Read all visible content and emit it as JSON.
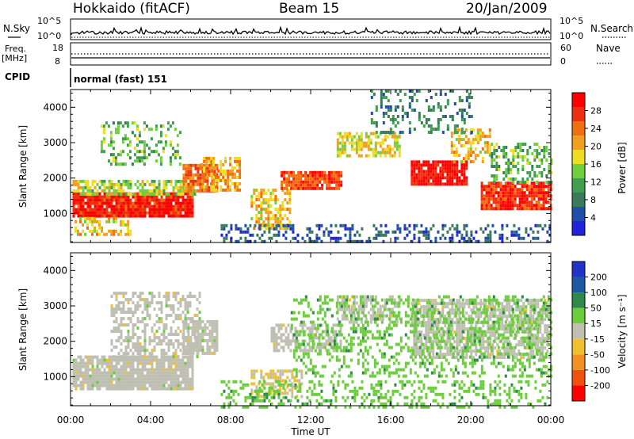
{
  "header": {
    "station": "Hokkaido (fitACF)",
    "beam": "Beam 15",
    "date": "20/Jan/2009"
  },
  "summary_panels": {
    "nsky_label": "N.Sky",
    "nsky_ticks": [
      "10^5",
      "10^0"
    ],
    "nsearch_label": "N.Search",
    "nsearch_ticks": [
      "10^5",
      "10^0"
    ],
    "freq_label": "Freq.",
    "freq_unit": "[MHz]",
    "freq_ticks": [
      "18",
      "8"
    ],
    "nave_label": "Nave",
    "nave_ticks": [
      "60",
      "0"
    ],
    "cpid_label": "CPID",
    "cpid_value": "normal (fast) 151"
  },
  "colors": {
    "power_scale": [
      "#2222dd",
      "#1f4fa8",
      "#3a7a5a",
      "#3f9f4f",
      "#6fcf3f",
      "#eedd22",
      "#f0a020",
      "#f07010",
      "#ee3010",
      "#ff0000"
    ],
    "velocity_scale": [
      "#2232c8",
      "#1e58a0",
      "#2e8a4a",
      "#6ccd3c",
      "#c0c0b0",
      "#f0c030",
      "#f09020",
      "#f05010",
      "#ff0000"
    ],
    "velocity_ground": "#bebeb4"
  },
  "chart_data": [
    {
      "type": "heatmap",
      "name": "power",
      "ylabel": "Slant Range [km]",
      "xlabel": "",
      "yticks": [
        "1000",
        "2000",
        "3000",
        "4000"
      ],
      "ylim": [
        180,
        4500
      ],
      "xlim_hours": [
        0,
        24
      ],
      "colorbar_label": "Power [dB]",
      "colorbar_ticks": [
        "4",
        "8",
        "12",
        "16",
        "20",
        "24",
        "28"
      ],
      "color_range": [
        0,
        30
      ],
      "regions": [
        {
          "t": [
            0.1,
            6.1
          ],
          "r": [
            900,
            1600
          ],
          "v": 27,
          "density": 0.95
        },
        {
          "t": [
            0.1,
            6.2
          ],
          "r": [
            1550,
            1950
          ],
          "v": 15,
          "density": 0.7
        },
        {
          "t": [
            0.2,
            3.0
          ],
          "r": [
            400,
            900
          ],
          "v": 18,
          "density": 0.5
        },
        {
          "t": [
            5.6,
            7.3
          ],
          "r": [
            1600,
            2400
          ],
          "v": 23,
          "density": 0.85
        },
        {
          "t": [
            1.5,
            5.5
          ],
          "r": [
            2400,
            3600
          ],
          "v": 12,
          "density": 0.3
        },
        {
          "t": [
            6.5,
            8.5
          ],
          "r": [
            1700,
            2600
          ],
          "v": 20,
          "density": 0.6
        },
        {
          "t": [
            9.0,
            11.0
          ],
          "r": [
            600,
            1700
          ],
          "v": 18,
          "density": 0.6
        },
        {
          "t": [
            10.5,
            13.5
          ],
          "r": [
            1700,
            2200
          ],
          "v": 25,
          "density": 0.85
        },
        {
          "t": [
            13.3,
            16.5
          ],
          "r": [
            2600,
            3300
          ],
          "v": 17,
          "density": 0.6
        },
        {
          "t": [
            17.0,
            19.8
          ],
          "r": [
            1800,
            2500
          ],
          "v": 28,
          "density": 0.9
        },
        {
          "t": [
            19.0,
            21.0
          ],
          "r": [
            2500,
            3400
          ],
          "v": 18,
          "density": 0.5
        },
        {
          "t": [
            20.5,
            24.0
          ],
          "r": [
            1100,
            1900
          ],
          "v": 26,
          "density": 0.9
        },
        {
          "t": [
            21.0,
            24.0
          ],
          "r": [
            1900,
            3000
          ],
          "v": 12,
          "density": 0.4
        },
        {
          "t": [
            7.5,
            24.0
          ],
          "r": [
            180,
            700
          ],
          "v": 5,
          "density": 0.35
        },
        {
          "t": [
            15.0,
            20.0
          ],
          "r": [
            3300,
            4500
          ],
          "v": 8,
          "density": 0.25
        }
      ]
    },
    {
      "type": "heatmap",
      "name": "velocity",
      "ylabel": "Slant Range [km]",
      "xlabel": "Time UT",
      "xticks": [
        "00:00",
        "04:00",
        "08:00",
        "12:00",
        "16:00",
        "20:00",
        "00:00"
      ],
      "yticks": [
        "1000",
        "2000",
        "3000",
        "4000"
      ],
      "ylim": [
        180,
        4500
      ],
      "xlim_hours": [
        0,
        24
      ],
      "colorbar_label": "Velocity [m s⁻¹]",
      "colorbar_ticks": [
        "200",
        "100",
        "50",
        "15",
        "-15",
        "-50",
        "-100",
        "-200"
      ],
      "color_range": [
        -250,
        250
      ],
      "regions": [
        {
          "t": [
            0.1,
            6.1
          ],
          "r": [
            700,
            1600
          ],
          "v": 0,
          "density": 0.9
        },
        {
          "t": [
            2.0,
            6.5
          ],
          "r": [
            1600,
            3400
          ],
          "v": 0,
          "density": 0.5
        },
        {
          "t": [
            5.6,
            7.3
          ],
          "r": [
            1700,
            2600
          ],
          "v": 0,
          "density": 0.8
        },
        {
          "t": [
            10.0,
            13.5
          ],
          "r": [
            1700,
            2500
          ],
          "v": 0,
          "density": 0.6
        },
        {
          "t": [
            13.3,
            16.5
          ],
          "r": [
            2500,
            3300
          ],
          "v": 0,
          "density": 0.6
        },
        {
          "t": [
            17.0,
            24.0
          ],
          "r": [
            1500,
            3200
          ],
          "v": 0,
          "density": 0.7
        },
        {
          "t": [
            9.0,
            11.5
          ],
          "r": [
            400,
            1200
          ],
          "v": -30,
          "density": 0.5
        },
        {
          "t": [
            7.5,
            24.0
          ],
          "r": [
            180,
            900
          ],
          "v": 60,
          "density": 0.3
        },
        {
          "t": [
            11.0,
            24.0
          ],
          "r": [
            1000,
            3300
          ],
          "v": 60,
          "density": 0.3
        }
      ]
    }
  ]
}
